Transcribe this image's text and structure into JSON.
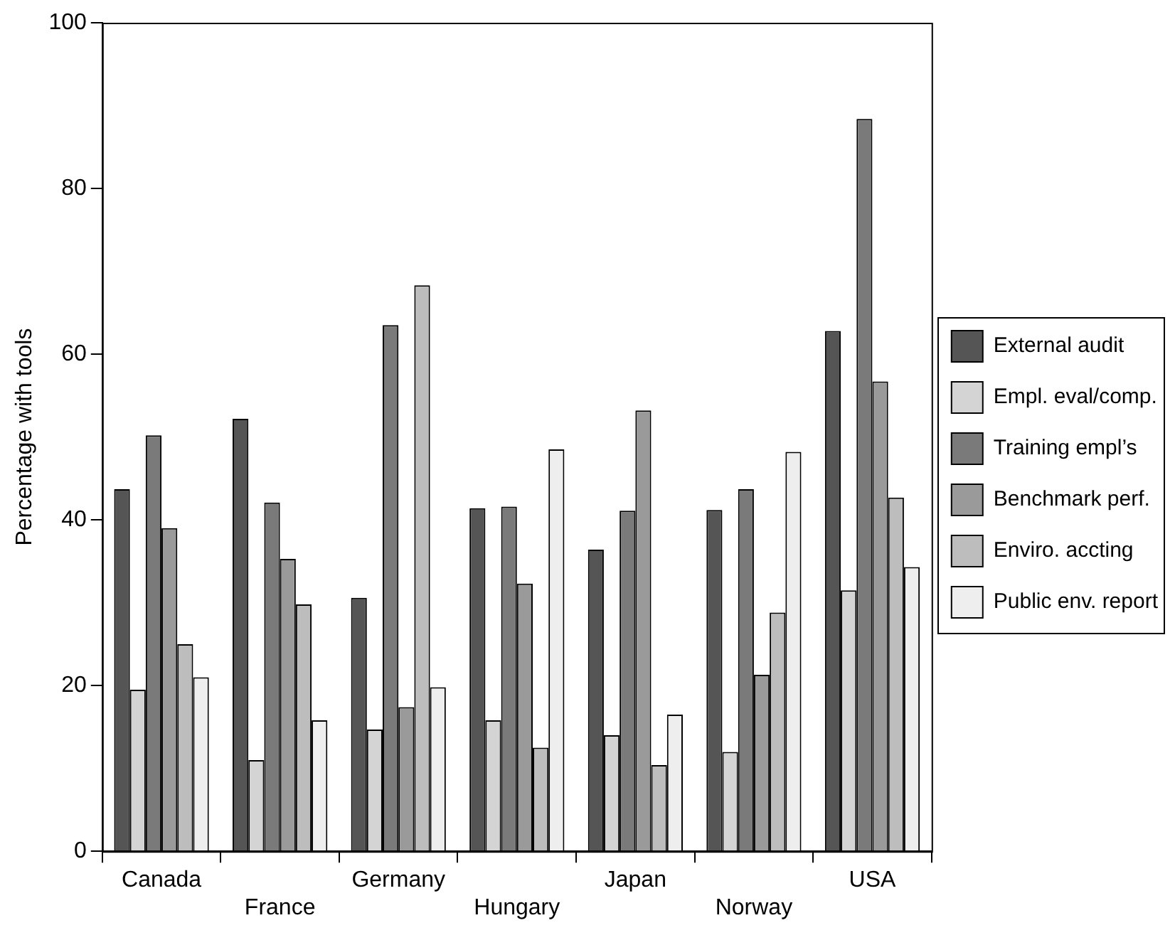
{
  "chart_data": {
    "type": "bar",
    "ylabel": "Percentage with tools",
    "categories": [
      "Canada",
      "France",
      "Germany",
      "Hungary",
      "Japan",
      "Norway",
      "USA"
    ],
    "series": [
      {
        "name": "External audit",
        "color": "#555555",
        "values": [
          43.7,
          52.2,
          30.6,
          41.4,
          36.4,
          41.2,
          62.8
        ]
      },
      {
        "name": "Empl. eval/comp.",
        "color": "#d4d4d4",
        "values": [
          19.5,
          11,
          14.7,
          15.8,
          14,
          12,
          31.5
        ]
      },
      {
        "name": "Training empl’s",
        "color": "#7a7a7a",
        "values": [
          50.2,
          42.1,
          63.5,
          41.6,
          41.1,
          43.7,
          88.4
        ]
      },
      {
        "name": "Benchmark perf.",
        "color": "#9a9a9a",
        "values": [
          39,
          35.3,
          17.4,
          32.3,
          53.2,
          21.3,
          56.7
        ]
      },
      {
        "name": "Enviro. accting",
        "color": "#bdbdbd",
        "values": [
          25,
          29.8,
          68.3,
          12.5,
          10.4,
          28.8,
          42.7
        ]
      },
      {
        "name": "Public env. report",
        "color": "#eeeeee",
        "values": [
          21,
          15.8,
          19.8,
          48.5,
          16.5,
          48.2,
          34.3
        ]
      }
    ],
    "ylim": [
      0,
      100
    ],
    "yticks": [
      0,
      20,
      40,
      60,
      80,
      100
    ],
    "grid": false,
    "legend": "right"
  }
}
